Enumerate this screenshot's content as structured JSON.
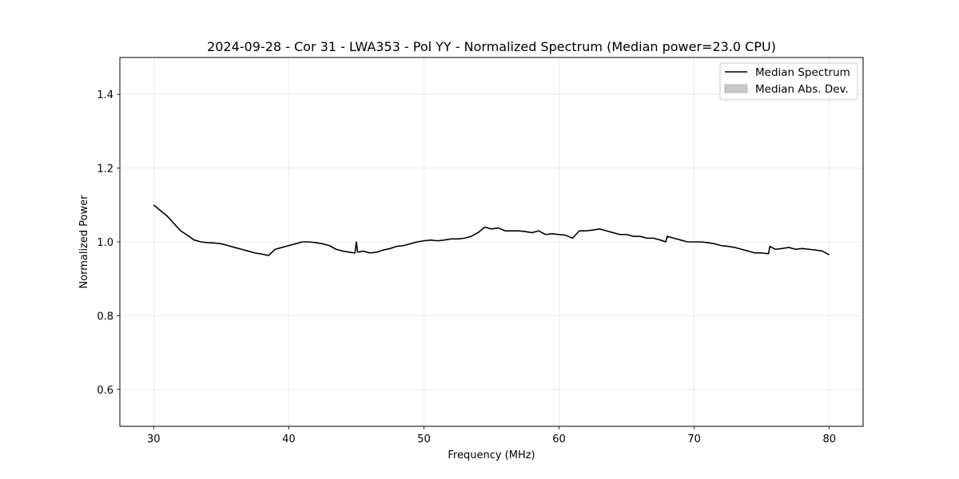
{
  "chart_data": {
    "type": "line",
    "title": "2024-09-28 - Cor 31 - LWA353 - Pol YY - Normalized Spectrum (Median power=23.0 CPU)",
    "xlabel": "Frequency (MHz)",
    "ylabel": "Normalized Power",
    "xlim": [
      27.5,
      82.5
    ],
    "ylim": [
      0.5,
      1.5
    ],
    "xticks": [
      30,
      40,
      50,
      60,
      70,
      80
    ],
    "yticks": [
      0.6,
      0.8,
      1.0,
      1.2,
      1.4
    ],
    "xtick_labels": [
      "30",
      "40",
      "50",
      "60",
      "70",
      "80"
    ],
    "ytick_labels": [
      "0.6",
      "0.8",
      "1.0",
      "1.2",
      "1.4"
    ],
    "grid": true,
    "legend": {
      "placement": "upper-right",
      "entries": [
        {
          "label": "Median Spectrum",
          "kind": "line",
          "color": "#000000"
        },
        {
          "label": "Median Abs. Dev.",
          "kind": "patch",
          "color": "#c8c8c8"
        }
      ]
    },
    "series": [
      {
        "name": "Median Spectrum",
        "color": "#000000",
        "x": [
          30.0,
          30.5,
          31.0,
          31.5,
          32.0,
          32.5,
          33.0,
          33.5,
          34.0,
          34.5,
          35.0,
          35.5,
          36.0,
          36.5,
          37.0,
          37.5,
          38.0,
          38.5,
          39.0,
          39.5,
          40.0,
          40.5,
          41.0,
          41.5,
          42.0,
          42.5,
          43.0,
          43.5,
          44.0,
          44.5,
          44.9,
          45.0,
          45.1,
          45.5,
          46.0,
          46.5,
          47.0,
          47.5,
          48.0,
          48.5,
          49.0,
          49.5,
          50.0,
          50.5,
          51.0,
          51.5,
          52.0,
          52.5,
          53.0,
          53.5,
          54.0,
          54.5,
          55.0,
          55.5,
          56.0,
          56.5,
          57.0,
          57.5,
          58.0,
          58.5,
          59.0,
          59.5,
          60.0,
          60.5,
          61.0,
          61.5,
          62.0,
          62.5,
          63.0,
          63.5,
          64.0,
          64.5,
          65.0,
          65.5,
          66.0,
          66.5,
          67.0,
          67.5,
          67.9,
          68.0,
          68.5,
          69.0,
          69.5,
          70.0,
          70.5,
          71.0,
          71.5,
          72.0,
          72.5,
          73.0,
          73.5,
          74.0,
          74.5,
          75.0,
          75.5,
          75.6,
          76.0,
          76.5,
          77.0,
          77.5,
          78.0,
          78.5,
          79.0,
          79.5,
          80.0
        ],
        "values": [
          1.1,
          1.085,
          1.07,
          1.05,
          1.03,
          1.018,
          1.005,
          1.0,
          0.998,
          0.997,
          0.995,
          0.99,
          0.985,
          0.98,
          0.975,
          0.97,
          0.967,
          0.963,
          0.98,
          0.985,
          0.99,
          0.995,
          1.0,
          1.0,
          0.998,
          0.995,
          0.99,
          0.98,
          0.975,
          0.972,
          0.97,
          1.0,
          0.972,
          0.975,
          0.97,
          0.972,
          0.978,
          0.982,
          0.988,
          0.99,
          0.995,
          1.0,
          1.003,
          1.005,
          1.003,
          1.005,
          1.008,
          1.008,
          1.01,
          1.015,
          1.025,
          1.04,
          1.035,
          1.038,
          1.03,
          1.03,
          1.03,
          1.028,
          1.025,
          1.03,
          1.02,
          1.022,
          1.02,
          1.018,
          1.01,
          1.03,
          1.03,
          1.032,
          1.035,
          1.03,
          1.025,
          1.02,
          1.02,
          1.015,
          1.015,
          1.01,
          1.01,
          1.005,
          1.0,
          1.015,
          1.01,
          1.005,
          1.0,
          1.0,
          1.0,
          0.998,
          0.995,
          0.99,
          0.988,
          0.985,
          0.98,
          0.975,
          0.97,
          0.97,
          0.968,
          0.988,
          0.98,
          0.982,
          0.985,
          0.98,
          0.982,
          0.98,
          0.978,
          0.975,
          0.965
        ]
      }
    ]
  }
}
